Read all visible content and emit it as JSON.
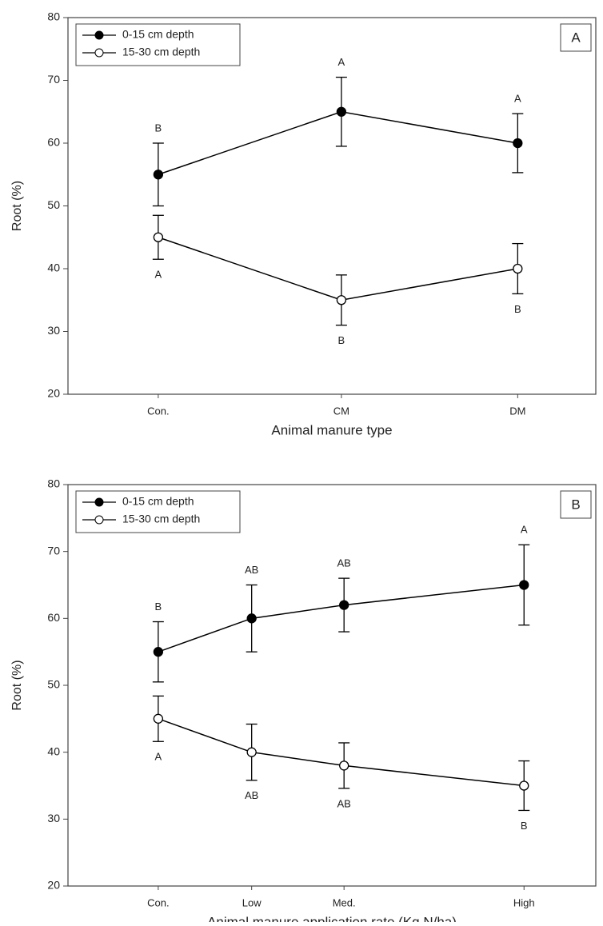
{
  "chart_data": [
    {
      "type": "line",
      "panel_label": "A",
      "xlabel": "Animal manure type",
      "ylabel": "Root (%)",
      "categories": [
        "Con.",
        "CM",
        "DM"
      ],
      "series": [
        {
          "name": "0-15 cm depth",
          "color": "#000000",
          "marker": "filled",
          "values": [
            55,
            65,
            60
          ],
          "errors": [
            5,
            5.5,
            4.7
          ],
          "letters": [
            "B",
            "A",
            "A"
          ]
        },
        {
          "name": "15-30 cm depth",
          "color": "#000000",
          "marker": "open",
          "values": [
            45,
            35,
            40
          ],
          "errors": [
            3.5,
            4,
            4
          ],
          "letters": [
            "A",
            "B",
            "B"
          ]
        }
      ],
      "ylim": [
        20,
        80
      ],
      "yticks": [
        20,
        30,
        40,
        50,
        60,
        70,
        80
      ],
      "legend": "upper left"
    },
    {
      "type": "line",
      "panel_label": "B",
      "xlabel": "Animal manure application rate (Kg N/ha)",
      "ylabel": "Root (%)",
      "categories": [
        "Con.",
        "Low",
        "Med.",
        "High"
      ],
      "series": [
        {
          "name": "0-15 cm depth",
          "color": "#000000",
          "marker": "filled",
          "values": [
            55,
            60,
            62,
            65
          ],
          "errors": [
            4.5,
            5,
            4,
            6
          ],
          "letters": [
            "B",
            "AB",
            "AB",
            "A"
          ]
        },
        {
          "name": "15-30 cm depth",
          "color": "#000000",
          "marker": "open",
          "values": [
            45,
            40,
            38,
            35
          ],
          "errors": [
            3.4,
            4.2,
            3.4,
            3.7
          ],
          "letters": [
            "A",
            "AB",
            "AB",
            "B"
          ]
        }
      ],
      "ylim": [
        20,
        80
      ],
      "yticks": [
        20,
        30,
        40,
        50,
        60,
        70,
        80
      ],
      "legend": "upper left"
    }
  ]
}
